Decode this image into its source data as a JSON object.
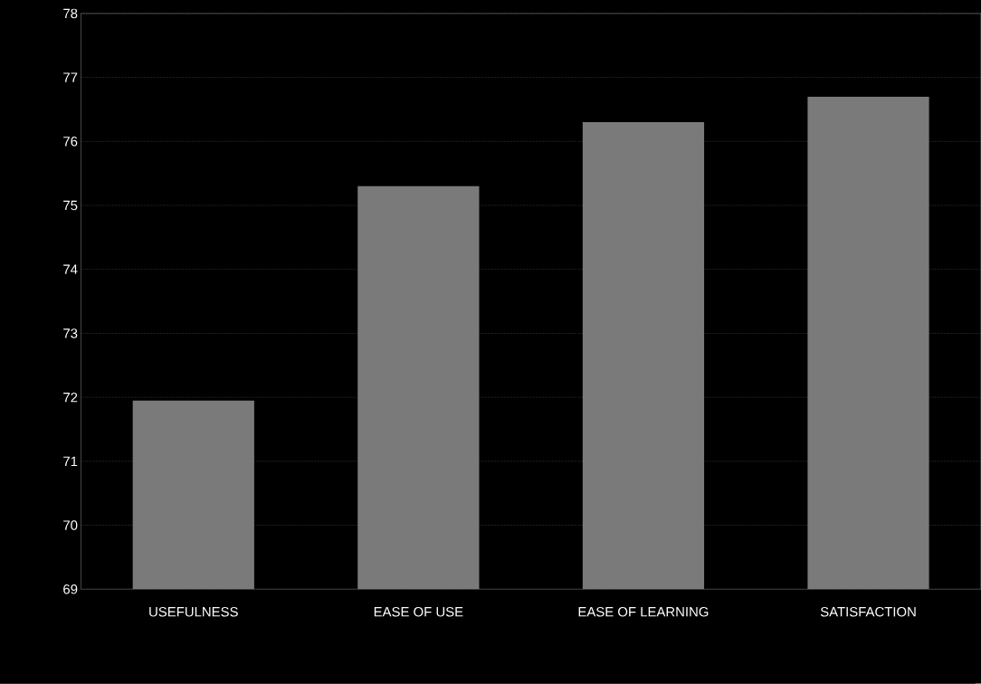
{
  "chart_data": {
    "type": "bar",
    "categories": [
      "USEFULNESS",
      "EASE OF USE",
      "EASE OF LEARNING",
      "SATISFACTION"
    ],
    "values": [
      71.95,
      75.3,
      76.3,
      76.7
    ],
    "color": "#7a7a7a",
    "ylim": [
      69,
      78
    ],
    "yticks": [
      69,
      70,
      71,
      72,
      73,
      74,
      75,
      76,
      77,
      78
    ],
    "grid": "y"
  }
}
